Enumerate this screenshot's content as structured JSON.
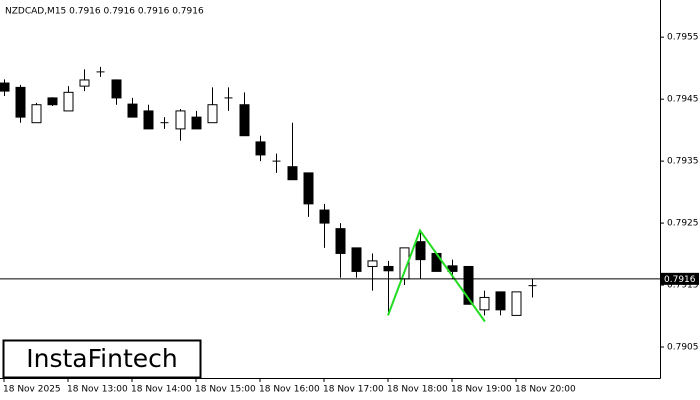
{
  "chart_data": {
    "type": "candlestick",
    "title": "NZDCAD,M15  0.7916 0.7916 0.7916 0.7916",
    "logo": "InstaFintech",
    "categories": [
      "18 Nov 2025",
      null,
      null,
      null,
      "18 Nov 13:00",
      null,
      null,
      null,
      "18 Nov 14:00",
      null,
      null,
      null,
      "18 Nov 15:00",
      null,
      null,
      null,
      "18 Nov 16:00",
      null,
      null,
      null,
      "18 Nov 17:00",
      null,
      null,
      null,
      "18 Nov 18:00",
      null,
      null,
      null,
      "18 Nov 19:00",
      null,
      null,
      null,
      "18 Nov 20:00",
      null
    ],
    "open": [
      0.79476,
      0.79469,
      0.79412,
      0.79452,
      0.79431,
      0.79471,
      0.79494,
      0.79481,
      0.79442,
      0.79431,
      0.79412,
      0.79402,
      0.79421,
      0.79412,
      0.79452,
      0.79441,
      0.79381,
      0.7935,
      0.79341,
      0.79331,
      0.79271,
      0.79241,
      0.7921,
      0.7918,
      0.7918,
      0.7916,
      0.7922,
      0.79201,
      0.79181,
      0.7918,
      0.7911,
      0.79139,
      0.79101,
      0.79149
    ],
    "high": [
      0.79482,
      0.79473,
      0.79444,
      0.79453,
      0.79471,
      0.79498,
      0.79502,
      0.79482,
      0.79452,
      0.79441,
      0.79421,
      0.79434,
      0.79431,
      0.79469,
      0.79469,
      0.79461,
      0.79391,
      0.79362,
      0.79412,
      0.79331,
      0.79281,
      0.7925,
      0.7921,
      0.79201,
      0.79189,
      0.7921,
      0.79239,
      0.79201,
      0.79191,
      0.7918,
      0.79141,
      0.79139,
      0.79139,
      0.7916
    ],
    "low": [
      0.79455,
      0.79412,
      0.79412,
      0.79439,
      0.79431,
      0.79463,
      0.79486,
      0.79441,
      0.79421,
      0.79402,
      0.79402,
      0.79383,
      0.79402,
      0.79412,
      0.79431,
      0.79391,
      0.7935,
      0.79331,
      0.7932,
      0.7926,
      0.7921,
      0.79162,
      0.79162,
      0.79141,
      0.79101,
      0.7915,
      0.7916,
      0.79172,
      0.7916,
      0.79119,
      0.79101,
      0.79101,
      0.79101,
      0.7913
    ],
    "close": [
      0.79463,
      0.79421,
      0.79441,
      0.79441,
      0.79461,
      0.79481,
      0.79494,
      0.79452,
      0.79421,
      0.79402,
      0.79412,
      0.79431,
      0.79402,
      0.79441,
      0.79452,
      0.79391,
      0.7936,
      0.7935,
      0.7932,
      0.79281,
      0.7925,
      0.79201,
      0.79172,
      0.79189,
      0.79173,
      0.7921,
      0.79191,
      0.79172,
      0.79172,
      0.79119,
      0.7913,
      0.7911,
      0.79139,
      0.79149
    ],
    "up_color": "#ffffff",
    "down_color": "#000000",
    "last_price": 0.7916,
    "pattern": {
      "color": "#22dd22",
      "x": [
        24,
        26,
        30.06
      ],
      "y": [
        0.79101,
        0.79238,
        0.79091
      ]
    },
    "ylim": [
      0.79,
      0.7961
    ],
    "yticks": [
      0.7955,
      0.7945,
      0.7935,
      0.7925,
      0.7915,
      0.7905
    ]
  }
}
